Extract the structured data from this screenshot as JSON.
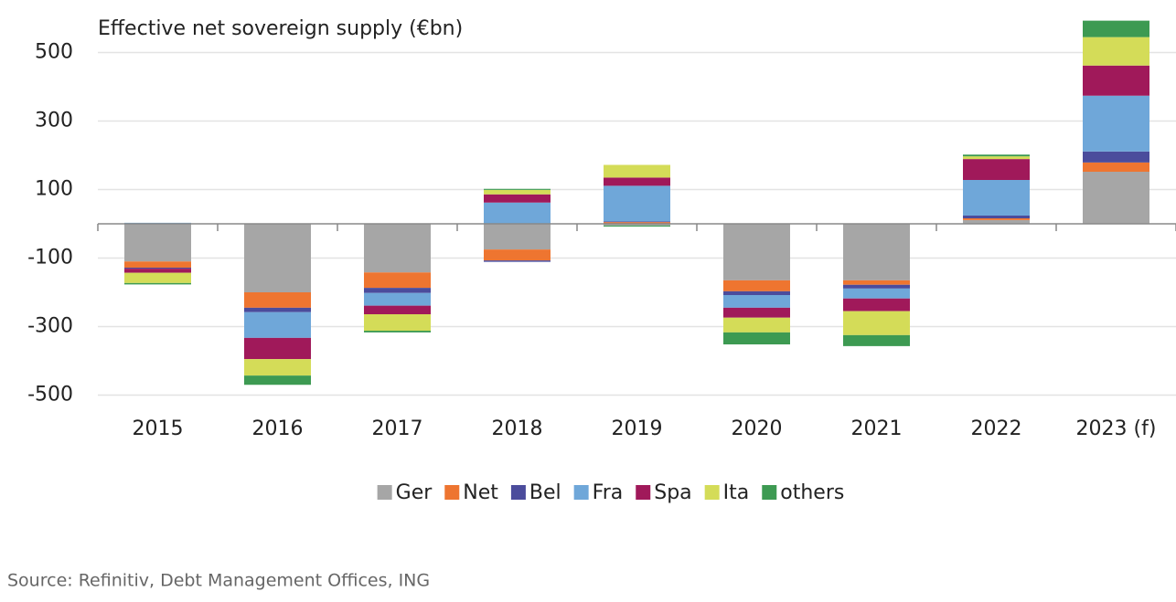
{
  "chart_data": {
    "type": "stacked-bar",
    "title": "Effective net sovereign supply (€bn)",
    "categories": [
      "2015",
      "2016",
      "2017",
      "2018",
      "2019",
      "2020",
      "2021",
      "2022",
      "2023 (f)"
    ],
    "series": [
      {
        "name": "Ger",
        "color": "#a6a6a6",
        "values": [
          -110,
          -200,
          -142,
          -75,
          -5,
          -165,
          -165,
          11,
          152
        ]
      },
      {
        "name": "Net",
        "color": "#ee7530",
        "values": [
          -18,
          -45,
          -45,
          -32,
          5,
          -32,
          -13,
          5,
          27
        ]
      },
      {
        "name": "Bel",
        "color": "#4b4c9c",
        "values": [
          -3,
          -13,
          -15,
          -4,
          2,
          -11,
          -11,
          8,
          32
        ]
      },
      {
        "name": "Fra",
        "color": "#6fa7d9",
        "values": [
          3,
          -75,
          -37,
          62,
          104,
          -37,
          -29,
          104,
          163
        ]
      },
      {
        "name": "Spa",
        "color": "#a0195a",
        "values": [
          -12,
          -62,
          -25,
          24,
          24,
          -29,
          -37,
          61,
          88
        ]
      },
      {
        "name": "Ita",
        "color": "#d4dc58",
        "values": [
          -30,
          -48,
          -48,
          13,
          37,
          -43,
          -70,
          8,
          83
        ]
      },
      {
        "name": "others",
        "color": "#3d9a52",
        "values": [
          -4,
          -27,
          -5,
          3,
          -3,
          -35,
          -32,
          5,
          48
        ]
      }
    ],
    "ylim": [
      -560,
      600
    ],
    "yticks": [
      -500,
      -300,
      -100,
      100,
      300,
      500
    ],
    "grid": true,
    "source": "Source: Refinitiv, Debt Management Offices, ING"
  }
}
